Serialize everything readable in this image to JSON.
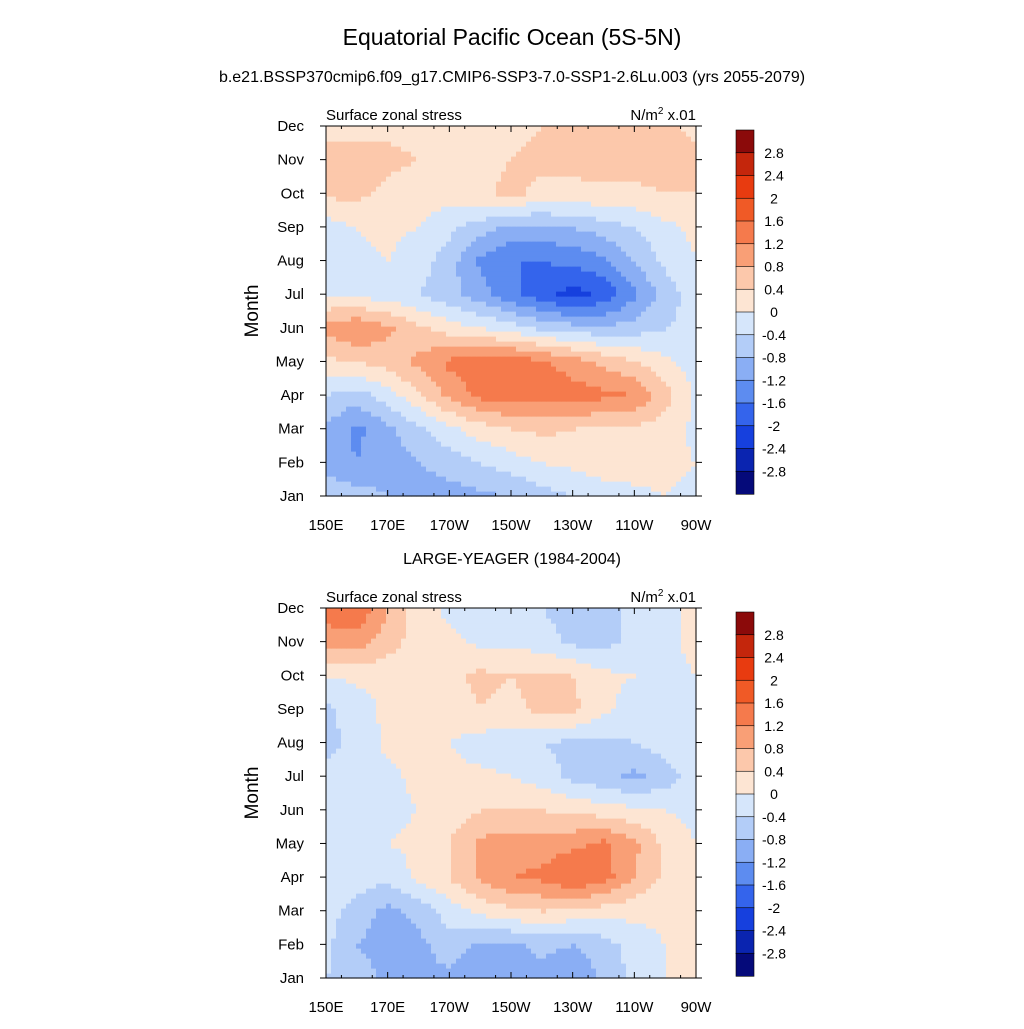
{
  "figure": {
    "title": "Equatorial Pacific Ocean (5S-5N)",
    "panel1_title": "b.e21.BSSP370cmip6.f09_g17.CMIP6-SSP3-7.0-SSP1-2.6Lu.003 (yrs 2055-2079)",
    "panel2_title": "LARGE-YEAGER (1984-2004)"
  },
  "chart_data": [
    {
      "type": "heatmap",
      "left_label": "Surface zonal stress",
      "units_prefix": "N/m",
      "units_exp": "2",
      "units_suffix": " x.01",
      "ylabel": "Month",
      "x_ticks": [
        "150E",
        "170E",
        "170W",
        "150W",
        "130W",
        "110W",
        "90W"
      ],
      "x_values": [
        150,
        170,
        190,
        210,
        230,
        250,
        270
      ],
      "xlim": [
        150,
        270
      ],
      "y_ticks": [
        "Jan",
        "Feb",
        "Mar",
        "Apr",
        "May",
        "Jun",
        "Jul",
        "Aug",
        "Sep",
        "Oct",
        "Nov",
        "Dec"
      ],
      "y_values": [
        1,
        2,
        3,
        4,
        5,
        6,
        7,
        8,
        9,
        10,
        11,
        12
      ],
      "ylim": [
        1,
        12
      ],
      "colorbar_levels": [
        "2.8",
        "2.4",
        "2",
        "1.6",
        "1.2",
        "0.8",
        "0.4",
        "0",
        "-0.4",
        "-0.8",
        "-1.2",
        "-1.6",
        "-2",
        "-2.4",
        "-2.8"
      ],
      "values": [
        [
          -0.5,
          -0.6,
          -0.8,
          -1.0,
          -1.0,
          -0.9,
          -0.8,
          -0.6,
          -0.4,
          -0.2,
          -0.1,
          0.0,
          -0.1
        ],
        [
          -1.0,
          -1.2,
          -1.0,
          -0.8,
          -0.6,
          -0.4,
          -0.2,
          0.0,
          0.1,
          0.2,
          0.2,
          0.1,
          0.0
        ],
        [
          -0.9,
          -1.3,
          -0.9,
          -0.5,
          -0.1,
          0.2,
          0.4,
          0.5,
          0.4,
          0.3,
          0.3,
          0.2,
          -0.1
        ],
        [
          -0.4,
          -0.6,
          -0.2,
          0.3,
          0.9,
          1.3,
          1.4,
          1.4,
          1.4,
          1.3,
          1.2,
          0.6,
          -0.1
        ],
        [
          0.3,
          0.4,
          0.6,
          0.9,
          1.3,
          1.5,
          1.5,
          1.3,
          1.0,
          0.7,
          0.4,
          0.1,
          -0.2
        ],
        [
          0.9,
          1.2,
          0.9,
          0.5,
          0.2,
          0.0,
          -0.2,
          -0.5,
          -0.6,
          -0.7,
          -0.6,
          -0.4,
          -0.3
        ],
        [
          0.0,
          -0.1,
          -0.2,
          -0.4,
          -0.7,
          -1.0,
          -1.5,
          -1.8,
          -2.2,
          -1.9,
          -1.3,
          -0.6,
          -0.2
        ],
        [
          -0.2,
          -0.1,
          0.0,
          -0.2,
          -0.6,
          -1.3,
          -1.6,
          -1.6,
          -1.5,
          -1.3,
          -0.8,
          -0.3,
          0.0
        ],
        [
          -0.2,
          0.0,
          0.1,
          0.0,
          -0.3,
          -0.6,
          -0.9,
          -0.9,
          -0.8,
          -0.6,
          -0.4,
          -0.1,
          0.1
        ],
        [
          0.5,
          0.5,
          0.3,
          0.2,
          0.2,
          0.3,
          0.5,
          0.3,
          0.3,
          0.3,
          0.3,
          0.4,
          0.4
        ],
        [
          0.5,
          0.5,
          0.5,
          0.4,
          0.3,
          0.3,
          0.4,
          0.5,
          0.5,
          0.6,
          0.6,
          0.6,
          0.5
        ],
        [
          0.3,
          0.3,
          0.3,
          0.3,
          0.2,
          0.2,
          0.3,
          0.4,
          0.5,
          0.6,
          0.5,
          0.5,
          0.3
        ]
      ]
    },
    {
      "type": "heatmap",
      "left_label": "Surface zonal stress",
      "units_prefix": "N/m",
      "units_exp": "2",
      "units_suffix": " x.01",
      "ylabel": "Month",
      "x_ticks": [
        "150E",
        "170E",
        "170W",
        "150W",
        "130W",
        "110W",
        "90W"
      ],
      "x_values": [
        150,
        170,
        190,
        210,
        230,
        250,
        270
      ],
      "xlim": [
        150,
        270
      ],
      "y_ticks": [
        "Jan",
        "Feb",
        "Mar",
        "Apr",
        "May",
        "Jun",
        "Jul",
        "Aug",
        "Sep",
        "Oct",
        "Nov",
        "Dec"
      ],
      "y_values": [
        1,
        2,
        3,
        4,
        5,
        6,
        7,
        8,
        9,
        10,
        11,
        12
      ],
      "ylim": [
        1,
        12
      ],
      "colorbar_levels": [
        "2.8",
        "2.4",
        "2",
        "1.6",
        "1.2",
        "0.8",
        "0.4",
        "0",
        "-0.4",
        "-0.8",
        "-1.2",
        "-1.6",
        "-2",
        "-2.4",
        "-2.8"
      ],
      "values": [
        [
          -0.4,
          -0.6,
          -0.9,
          -0.9,
          -0.9,
          -1.2,
          -1.0,
          -0.9,
          -1.2,
          -0.7,
          -0.3,
          0.0,
          0.1
        ],
        [
          -0.3,
          -0.8,
          -1.0,
          -0.9,
          -0.6,
          -0.9,
          -0.9,
          -0.7,
          -0.8,
          -0.6,
          -0.2,
          0.0,
          0.1
        ],
        [
          -0.2,
          -0.6,
          -0.9,
          -0.7,
          -0.2,
          0.1,
          0.3,
          0.4,
          0.3,
          0.2,
          0.1,
          0.1,
          0.1
        ],
        [
          -0.1,
          -0.2,
          -0.3,
          0.1,
          0.4,
          0.9,
          1.2,
          1.3,
          1.6,
          1.4,
          0.8,
          0.3,
          0.1
        ],
        [
          -0.2,
          -0.1,
          0.0,
          0.1,
          0.4,
          0.9,
          1.0,
          1.0,
          1.1,
          1.3,
          0.9,
          0.3,
          0.0
        ],
        [
          -0.3,
          -0.3,
          -0.1,
          0.0,
          0.2,
          0.4,
          0.4,
          0.4,
          0.3,
          0.2,
          0.1,
          0.0,
          -0.1
        ],
        [
          -0.3,
          -0.3,
          -0.1,
          0.1,
          0.1,
          0.1,
          0.0,
          -0.2,
          -0.5,
          -0.7,
          -0.9,
          -0.6,
          -0.2
        ],
        [
          -0.5,
          -0.3,
          0.1,
          0.2,
          0.0,
          -0.2,
          -0.3,
          -0.4,
          -0.5,
          -0.5,
          -0.4,
          -0.2,
          0.0
        ],
        [
          -0.5,
          -0.2,
          0.1,
          0.2,
          0.2,
          0.4,
          0.3,
          0.5,
          0.5,
          0.1,
          -0.2,
          -0.1,
          0.0
        ],
        [
          0.0,
          0.1,
          0.1,
          0.2,
          0.3,
          0.5,
          0.4,
          0.5,
          0.4,
          0.1,
          0.0,
          -0.2,
          0.0
        ],
        [
          0.9,
          1.0,
          0.6,
          0.2,
          0.1,
          -0.1,
          -0.1,
          -0.2,
          -0.5,
          -0.5,
          -0.3,
          -0.2,
          0.2
        ],
        [
          1.5,
          1.6,
          0.8,
          0.2,
          -0.1,
          -0.2,
          -0.3,
          -0.4,
          -0.6,
          -0.5,
          -0.3,
          -0.1,
          0.1
        ]
      ]
    }
  ],
  "palette": {
    "pos": [
      "#fde5d3",
      "#fcc8ab",
      "#f99f76",
      "#f57a4c",
      "#f05a26",
      "#e83b10",
      "#c4260c",
      "#8b0a0a"
    ],
    "neg": [
      "#d6e6fb",
      "#b3cdf8",
      "#8aaef4",
      "#5d8cf0",
      "#3464ec",
      "#1640de",
      "#0a24b0",
      "#050a7a"
    ]
  }
}
